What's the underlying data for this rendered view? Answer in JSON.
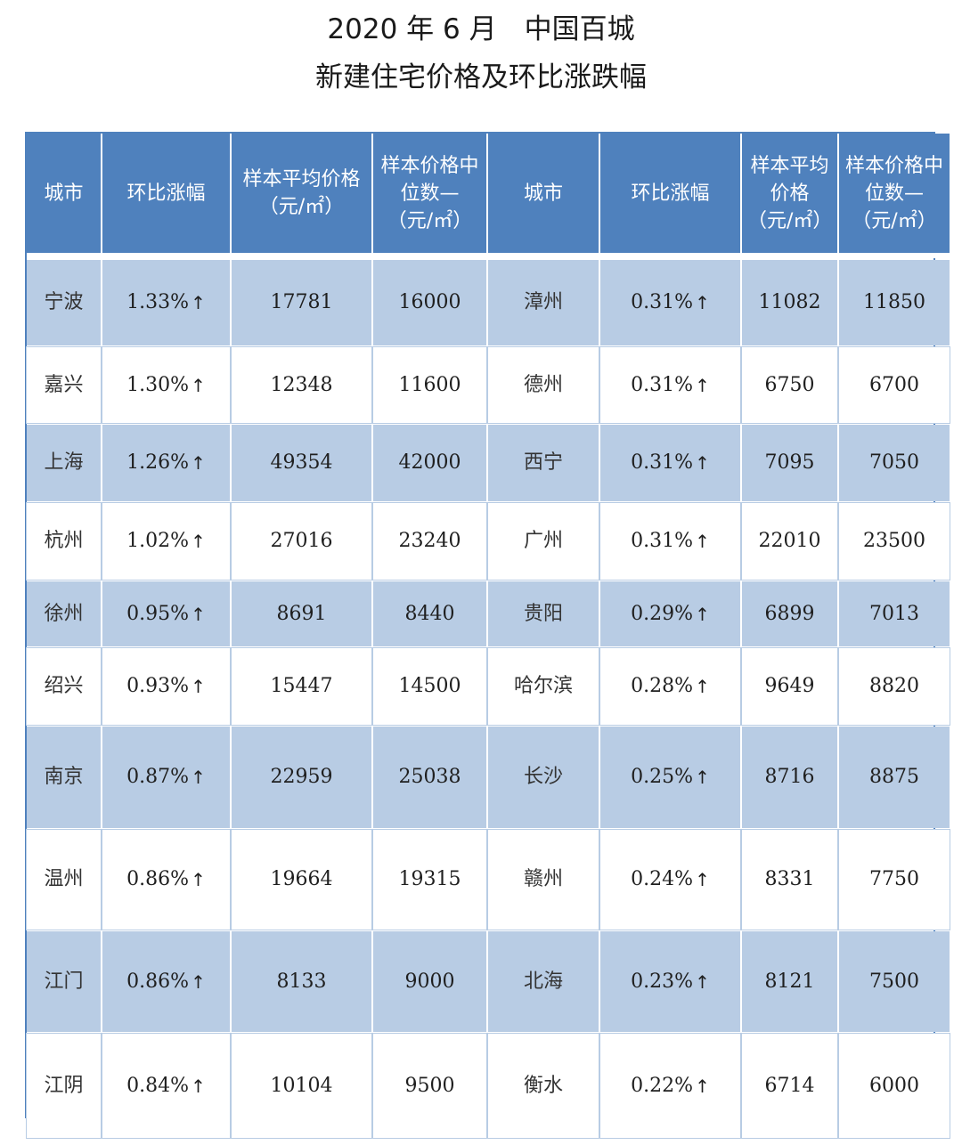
{
  "title_line1": "2020 年 6 月　中国百城",
  "title_line2": "新建住宅价格及环比涨跌幅",
  "table": {
    "headers": [
      "城市",
      "环比涨幅",
      "样本平均价格（元/㎡）",
      "样本价格中位数—（元/㎡）",
      "城市",
      "环比涨幅",
      "样本平均价格（元/㎡）",
      "样本价格中位数—（元/㎡）"
    ],
    "trend_icon": "up-arrow-icon",
    "rows": [
      [
        "宁波",
        "1.33%",
        "17781",
        "16000",
        "漳州",
        "0.31%",
        "11082",
        "11850"
      ],
      [
        "嘉兴",
        "1.30%",
        "12348",
        "11600",
        "德州",
        "0.31%",
        "6750",
        "6700"
      ],
      [
        "上海",
        "1.26%",
        "49354",
        "42000",
        "西宁",
        "0.31%",
        "7095",
        "7050"
      ],
      [
        "杭州",
        "1.02%",
        "27016",
        "23240",
        "广州",
        "0.31%",
        "22010",
        "23500"
      ],
      [
        "徐州",
        "0.95%",
        "8691",
        "8440",
        "贵阳",
        "0.29%",
        "6899",
        "7013"
      ],
      [
        "绍兴",
        "0.93%",
        "15447",
        "14500",
        "哈尔滨",
        "0.28%",
        "9649",
        "8820"
      ],
      [
        "南京",
        "0.87%",
        "22959",
        "25038",
        "长沙",
        "0.25%",
        "8716",
        "8875"
      ],
      [
        "温州",
        "0.86%",
        "19664",
        "19315",
        "赣州",
        "0.24%",
        "8331",
        "7750"
      ],
      [
        "江门",
        "0.86%",
        "8133",
        "9000",
        "北海",
        "0.23%",
        "8121",
        "7500"
      ],
      [
        "江阴",
        "0.84%",
        "10104",
        "9500",
        "衡水",
        "0.22%",
        "6714",
        "6000"
      ]
    ]
  },
  "colors": {
    "header_bg": "#4f81bd",
    "band_bg": "#b8cce4",
    "plain_bg": "#ffffff"
  }
}
